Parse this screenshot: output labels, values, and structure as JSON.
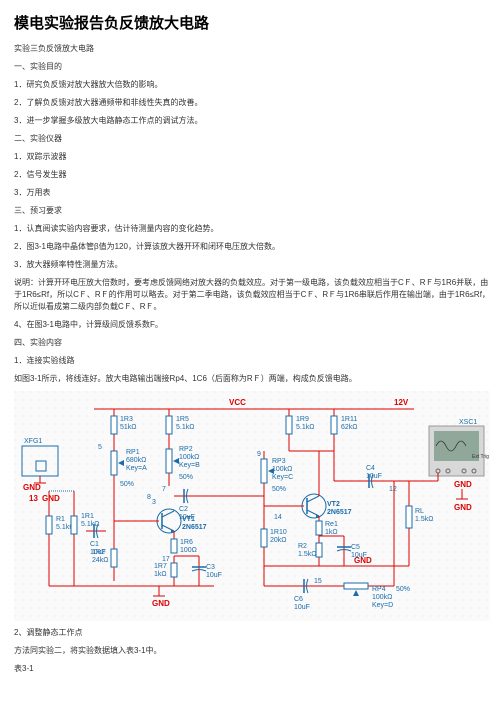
{
  "title": "模电实验报告负反馈放大电路",
  "lines": [
    "实验三负反馈放大电路",
    "一、实验目的",
    "1．研究负反馈对放大器放大倍数的影响。",
    "2．了解负反馈对放大器通频带和非线性失真的改善。",
    "3．进一步掌握多级放大电路静态工作点的调试方法。",
    "二、实验仪器",
    "1．双踪示波器",
    "2．信号发生器",
    "3．万用表",
    "三、预习要求",
    "1．认真阅读实验内容要求，估计待测量内容的变化趋势。",
    "2．图3-1电路中晶体管β值为120，计算该放大器开环和闭环电压放大倍数。",
    "3．放大器频率特性测量方法。",
    "说明：计算开环电压放大倍数时，要考虑反馈网络对放大器的负载效应。对于第一级电路，该负载效应相当于CＦ、RＦ与1R6并联，由于1R6≤Rf，所以CＦ、RＦ的作用可以略去。对于第二季电路，该负载效应相当于CＦ、RＦ与1R6串联后作用在输出端，由于1R6≤Rf，所以近似看成第二级内部负载CＦ、RＦ。",
    "4、在图3-1电路中，计算级间反馈系数F。",
    "四、实验内容",
    "1．连接实验线路",
    "如图3-1所示，将线连好。放大电路输出端接Rp4、1C6（后面称为RＦ）两端，构成负反馈电路。"
  ],
  "after_circuit": [
    "2、调整静态工作点",
    "方法同实验二，将实验数据填入表3-1中。",
    "表3-1"
  ],
  "circuit": {
    "nets": {
      "vcc": "VCC",
      "gnd": "GND",
      "v12": "12V"
    },
    "components": {
      "XFG1": "XFG1",
      "XSC1": "XSC1",
      "R1": "R1\n5.1kΩ",
      "1R1": "1R1\n5.1kΩ",
      "1R2": "1R2\n24kΩ",
      "1R3": "1R3\n51kΩ",
      "1R5": "1R5\n5.1kΩ",
      "1R6": "1R6\n100Ω",
      "1R7": "1R7\n1kΩ",
      "1R9": "1R9\n5.1kΩ",
      "1R10": "1R10\n20kΩ",
      "1R11": "1R11\n62kΩ",
      "Re1": "Re1\n1kΩ",
      "R2": "R2\n1.5kΩ",
      "RL": "RL\n1.5kΩ",
      "RP1": "RP1\n680kΩ\nKey=A",
      "RP2": "RP2\n100kΩ\nKey=B",
      "RP3": "RP3\n100kΩ\nKey=C",
      "RP4": "RP4\n100kΩ\nKey=D",
      "C1": "C1\n10uF",
      "C2": "C2\n10uF",
      "C3": "C3\n10uF",
      "C4": "C4\n10uF",
      "C5": "C5\n10uF",
      "C6": "C6\n10uF",
      "VT1": "VT1\n2N6517",
      "VT2": "VT2\n2N6517",
      "p50a": "50%",
      "p50b": "50%",
      "p50c": "50%",
      "p50d": "50%",
      "node3": "3",
      "node5": "5",
      "node7": "7",
      "node8": "8",
      "node9": "9",
      "node12": "12",
      "node13": "13",
      "node14": "14",
      "node15": "15",
      "node17": "17"
    },
    "colors": {
      "wire": "#d00000",
      "comp": "#1a6ba8",
      "node": "#1a6ba8",
      "scope": "#7aa8d4",
      "scope_screen": "#8fa89a"
    }
  }
}
